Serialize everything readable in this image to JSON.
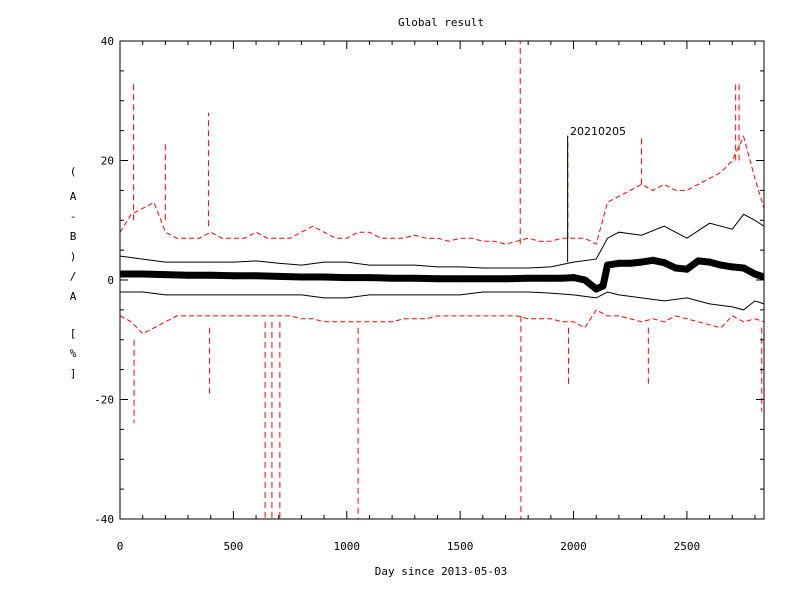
{
  "chart_data": {
    "type": "line",
    "title": "Global result",
    "xlabel": "Day since 2013-05-03",
    "ylabel": "(A-B)/A [%]",
    "ylabel_chars": [
      "(",
      "A",
      "-",
      "B",
      ")",
      "/",
      "A",
      "[",
      "%",
      "]"
    ],
    "xlim": [
      0,
      2840
    ],
    "ylim": [
      -40,
      40
    ],
    "x_ticks": [
      0,
      500,
      1000,
      1500,
      2000,
      2500
    ],
    "y_ticks": [
      -40,
      -20,
      0,
      20,
      40
    ],
    "grid": false,
    "colors": {
      "mean": "#000000",
      "inner_band": "#000000",
      "outer_band": "#ff0000"
    },
    "annotation": {
      "text": "20210205",
      "x": 1974,
      "y": 24
    },
    "series": [
      {
        "style": "thick-markers",
        "x": [
          0,
          100,
          200,
          300,
          400,
          500,
          600,
          700,
          800,
          900,
          1000,
          1100,
          1200,
          1300,
          1400,
          1500,
          1600,
          1700,
          1800,
          1900,
          1950,
          2000,
          2050,
          2100,
          2130,
          2150,
          2200,
          2250,
          2300,
          2350,
          2400,
          2450,
          2500,
          2550,
          2600,
          2650,
          2700,
          2750,
          2800,
          2840
        ],
        "y": [
          1.0,
          1.0,
          0.9,
          0.8,
          0.8,
          0.7,
          0.7,
          0.6,
          0.5,
          0.5,
          0.4,
          0.4,
          0.3,
          0.3,
          0.2,
          0.2,
          0.2,
          0.2,
          0.3,
          0.3,
          0.3,
          0.4,
          0.0,
          -1.5,
          -1.0,
          2.5,
          2.8,
          2.8,
          3.0,
          3.3,
          2.9,
          2.0,
          1.8,
          3.2,
          3.0,
          2.5,
          2.2,
          2.0,
          1.0,
          0.5
        ]
      },
      {
        "style": "thin",
        "x": [
          0,
          100,
          200,
          300,
          400,
          500,
          600,
          700,
          800,
          900,
          1000,
          1100,
          1200,
          1300,
          1400,
          1500,
          1600,
          1700,
          1800,
          1900,
          2000,
          2100,
          2150,
          2200,
          2300,
          2400,
          2500,
          2600,
          2700,
          2750,
          2800,
          2840
        ],
        "y": [
          4.0,
          3.5,
          3.0,
          3.0,
          3.0,
          3.0,
          3.2,
          2.8,
          2.5,
          3.0,
          3.0,
          2.5,
          2.5,
          2.5,
          2.2,
          2.2,
          2.0,
          2.0,
          2.0,
          2.2,
          3.0,
          3.5,
          7.0,
          8.0,
          7.5,
          9.0,
          7.0,
          9.5,
          8.5,
          11.0,
          10.0,
          9.0
        ]
      },
      {
        "style": "thin",
        "x": [
          0,
          100,
          200,
          300,
          400,
          500,
          600,
          700,
          800,
          900,
          1000,
          1100,
          1200,
          1300,
          1400,
          1500,
          1600,
          1700,
          1800,
          1900,
          2000,
          2100,
          2150,
          2200,
          2300,
          2400,
          2500,
          2600,
          2700,
          2750,
          2800,
          2840
        ],
        "y": [
          -2.0,
          -2.0,
          -2.5,
          -2.5,
          -2.5,
          -2.5,
          -2.5,
          -2.5,
          -2.5,
          -3.0,
          -3.0,
          -2.5,
          -2.5,
          -2.5,
          -2.5,
          -2.5,
          -2.0,
          -2.0,
          -2.0,
          -2.2,
          -2.5,
          -3.0,
          -2.0,
          -2.5,
          -3.0,
          -3.5,
          -3.0,
          -4.0,
          -4.5,
          -5.0,
          -3.5,
          -4.0
        ]
      },
      {
        "style": "dashed",
        "x": [
          0,
          50,
          100,
          150,
          200,
          250,
          300,
          350,
          400,
          450,
          500,
          550,
          600,
          650,
          700,
          750,
          800,
          850,
          900,
          950,
          1000,
          1050,
          1100,
          1150,
          1200,
          1250,
          1300,
          1350,
          1400,
          1450,
          1500,
          1550,
          1600,
          1650,
          1700,
          1750,
          1800,
          1850,
          1900,
          1950,
          2000,
          2050,
          2100,
          2150,
          2200,
          2250,
          2300,
          2350,
          2400,
          2450,
          2500,
          2550,
          2600,
          2650,
          2700,
          2750,
          2800,
          2840
        ],
        "y": [
          8.0,
          11.0,
          12.0,
          13.0,
          8.0,
          7.0,
          7.0,
          7.0,
          8.0,
          7.0,
          7.0,
          7.0,
          8.0,
          7.0,
          7.0,
          7.0,
          8.0,
          9.0,
          8.0,
          7.0,
          7.0,
          8.0,
          8.0,
          7.0,
          7.0,
          7.0,
          7.5,
          7.0,
          7.0,
          6.5,
          7.0,
          7.0,
          6.5,
          6.5,
          6.0,
          6.5,
          7.0,
          6.5,
          6.5,
          7.0,
          7.0,
          7.0,
          6.0,
          13.0,
          14.0,
          15.0,
          16.0,
          15.0,
          16.0,
          15.0,
          15.0,
          16.0,
          17.0,
          18.0,
          20.0,
          24.0,
          17.0,
          12.0
        ]
      },
      {
        "style": "dashed",
        "x": [
          0,
          50,
          100,
          150,
          200,
          250,
          300,
          350,
          400,
          450,
          500,
          550,
          600,
          650,
          700,
          750,
          800,
          850,
          900,
          950,
          1000,
          1050,
          1100,
          1150,
          1200,
          1250,
          1300,
          1350,
          1400,
          1450,
          1500,
          1550,
          1600,
          1650,
          1700,
          1750,
          1800,
          1850,
          1900,
          1950,
          2000,
          2050,
          2100,
          2150,
          2200,
          2250,
          2300,
          2350,
          2400,
          2450,
          2500,
          2550,
          2600,
          2650,
          2700,
          2750,
          2800,
          2840
        ],
        "y": [
          -6.0,
          -7.0,
          -9.0,
          -8.0,
          -7.0,
          -6.0,
          -6.0,
          -6.0,
          -6.0,
          -6.0,
          -6.0,
          -6.0,
          -6.0,
          -6.0,
          -6.0,
          -6.0,
          -6.5,
          -6.5,
          -7.0,
          -7.0,
          -7.0,
          -7.0,
          -7.0,
          -7.0,
          -7.0,
          -6.5,
          -6.5,
          -6.5,
          -6.0,
          -6.0,
          -6.0,
          -6.0,
          -6.0,
          -6.0,
          -6.0,
          -6.0,
          -6.5,
          -6.5,
          -6.5,
          -7.0,
          -7.0,
          -8.0,
          -5.0,
          -6.0,
          -6.0,
          -6.5,
          -7.0,
          -6.5,
          -7.0,
          -6.0,
          -6.5,
          -7.0,
          -7.5,
          -8.0,
          -6.0,
          -7.0,
          -6.5,
          -7.0
        ]
      }
    ],
    "spikes": [
      {
        "x": 60,
        "y0": 10,
        "y1": 33
      },
      {
        "x": 62,
        "y0": -10,
        "y1": -24
      },
      {
        "x": 200,
        "y0": 10,
        "y1": 23
      },
      {
        "x": 390,
        "y0": 9,
        "y1": 28
      },
      {
        "x": 395,
        "y0": -8,
        "y1": -19
      },
      {
        "x": 640,
        "y0": -7,
        "y1": -40
      },
      {
        "x": 670,
        "y0": -7,
        "y1": -40
      },
      {
        "x": 705,
        "y0": -7,
        "y1": -40
      },
      {
        "x": 1050,
        "y0": -8,
        "y1": -40
      },
      {
        "x": 1765,
        "y0": 6,
        "y1": 40
      },
      {
        "x": 1768,
        "y0": -6,
        "y1": -40
      },
      {
        "x": 1975,
        "y0": 7,
        "y1": 24
      },
      {
        "x": 1978,
        "y0": -8,
        "y1": -18
      },
      {
        "x": 2300,
        "y0": 16,
        "y1": 24
      },
      {
        "x": 2330,
        "y0": -8,
        "y1": -18
      },
      {
        "x": 2715,
        "y0": 20,
        "y1": 33
      },
      {
        "x": 2730,
        "y0": 20,
        "y1": 33
      },
      {
        "x": 2840,
        "y0": 12,
        "y1": 24
      },
      {
        "x": 2830,
        "y0": -8,
        "y1": -22
      }
    ]
  }
}
